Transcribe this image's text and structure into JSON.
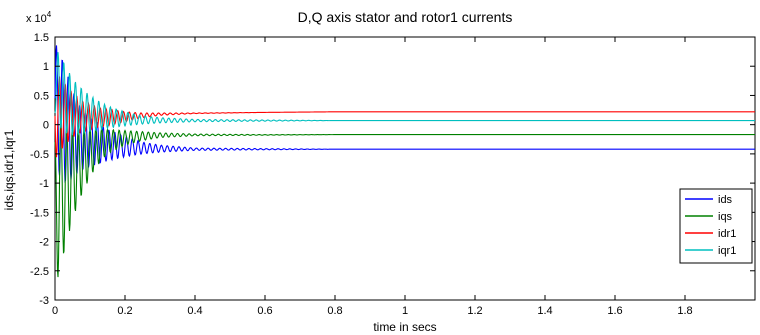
{
  "chart_data": {
    "type": "line",
    "title": "D,Q axis stator and rotor1 currents",
    "xlabel": "time in secs",
    "ylabel": "ids,iqs,idr1,iqr1",
    "y_multiplier_base": "x 10",
    "y_multiplier_exp": "4",
    "xlim": [
      0,
      2
    ],
    "ylim": [
      -3,
      1.5
    ],
    "x_ticks": [
      0,
      0.2,
      0.4,
      0.6,
      0.8,
      1,
      1.2,
      1.4,
      1.6,
      1.8
    ],
    "x_tick_labels": [
      "0",
      "0.2",
      "0.4",
      "0.6",
      "0.8",
      "1",
      "1.2",
      "1.4",
      "1.6",
      "1.8"
    ],
    "y_ticks": [
      -3,
      -2.5,
      -2,
      -1.5,
      -1,
      -0.5,
      0,
      0.5,
      1,
      1.5
    ],
    "y_tick_labels": [
      "-3",
      "-2.5",
      "-2",
      "-1.5",
      "-1",
      "-0.5",
      "0",
      "0.5",
      "1",
      "1.5"
    ],
    "grid": false,
    "legend_position": "bottom-right",
    "series": [
      {
        "name": "ids",
        "color": "#0000ff",
        "steady": -0.42,
        "x": [
          0,
          0.01,
          0.02,
          0.03,
          0.04,
          0.05,
          0.06,
          0.08,
          0.1,
          0.12,
          0.15,
          0.2,
          0.25,
          0.3,
          0.4,
          0.6,
          0.8,
          1,
          2
        ],
        "upper": [
          1.4,
          1.3,
          1.15,
          0.95,
          0.78,
          0.6,
          0.45,
          0.25,
          0.12,
          0.05,
          -0.08,
          -0.2,
          -0.3,
          -0.35,
          -0.4,
          -0.41,
          -0.42,
          -0.42,
          -0.42
        ],
        "lower": [
          -0.5,
          -0.85,
          -0.95,
          -1.0,
          -0.98,
          -0.92,
          -0.85,
          -0.78,
          -0.72,
          -0.68,
          -0.62,
          -0.55,
          -0.5,
          -0.47,
          -0.44,
          -0.43,
          -0.42,
          -0.42,
          -0.42
        ]
      },
      {
        "name": "iqs",
        "color": "#008000",
        "steady": -0.17,
        "x": [
          0,
          0.01,
          0.02,
          0.03,
          0.04,
          0.05,
          0.06,
          0.08,
          0.1,
          0.12,
          0.15,
          0.2,
          0.25,
          0.3,
          0.4,
          0.6,
          0.8,
          1,
          2
        ],
        "upper": [
          -0.3,
          0.2,
          0.15,
          0.1,
          0.05,
          0.02,
          0.0,
          -0.02,
          -0.05,
          -0.06,
          -0.08,
          -0.1,
          -0.12,
          -0.14,
          -0.16,
          -0.17,
          -0.17,
          -0.17,
          -0.17
        ],
        "lower": [
          -2.7,
          -2.6,
          -2.35,
          -2.1,
          -1.85,
          -1.65,
          -1.45,
          -1.15,
          -0.9,
          -0.7,
          -0.5,
          -0.35,
          -0.27,
          -0.22,
          -0.19,
          -0.18,
          -0.17,
          -0.17,
          -0.17
        ]
      },
      {
        "name": "idr1",
        "color": "#ff0000",
        "steady": 0.22,
        "x": [
          0,
          0.01,
          0.02,
          0.03,
          0.04,
          0.05,
          0.06,
          0.08,
          0.1,
          0.12,
          0.15,
          0.2,
          0.25,
          0.3,
          0.4,
          0.6,
          0.8,
          1,
          2
        ],
        "upper": [
          0.9,
          0.85,
          0.78,
          0.7,
          0.62,
          0.55,
          0.48,
          0.4,
          0.35,
          0.3,
          0.27,
          0.22,
          0.2,
          0.2,
          0.2,
          0.21,
          0.22,
          0.22,
          0.22
        ],
        "lower": [
          -0.6,
          -0.5,
          -0.42,
          -0.35,
          -0.28,
          -0.22,
          -0.18,
          -0.12,
          -0.08,
          -0.05,
          -0.02,
          0.05,
          0.12,
          0.16,
          0.19,
          0.21,
          0.22,
          0.22,
          0.22
        ]
      },
      {
        "name": "iqr1",
        "color": "#00bfbf",
        "steady": 0.07,
        "x": [
          0,
          0.01,
          0.02,
          0.03,
          0.04,
          0.05,
          0.06,
          0.08,
          0.1,
          0.12,
          0.15,
          0.2,
          0.25,
          0.3,
          0.4,
          0.6,
          0.8,
          1,
          2
        ],
        "upper": [
          1.2,
          1.25,
          1.15,
          1.0,
          0.9,
          0.8,
          0.72,
          0.6,
          0.5,
          0.42,
          0.32,
          0.22,
          0.15,
          0.12,
          0.09,
          0.08,
          0.07,
          0.07,
          0.07
        ],
        "lower": [
          0.2,
          0.0,
          -0.1,
          -0.15,
          -0.17,
          -0.18,
          -0.17,
          -0.15,
          -0.12,
          -0.1,
          -0.06,
          -0.02,
          0.01,
          0.03,
          0.05,
          0.06,
          0.07,
          0.07,
          0.07
        ]
      }
    ]
  }
}
